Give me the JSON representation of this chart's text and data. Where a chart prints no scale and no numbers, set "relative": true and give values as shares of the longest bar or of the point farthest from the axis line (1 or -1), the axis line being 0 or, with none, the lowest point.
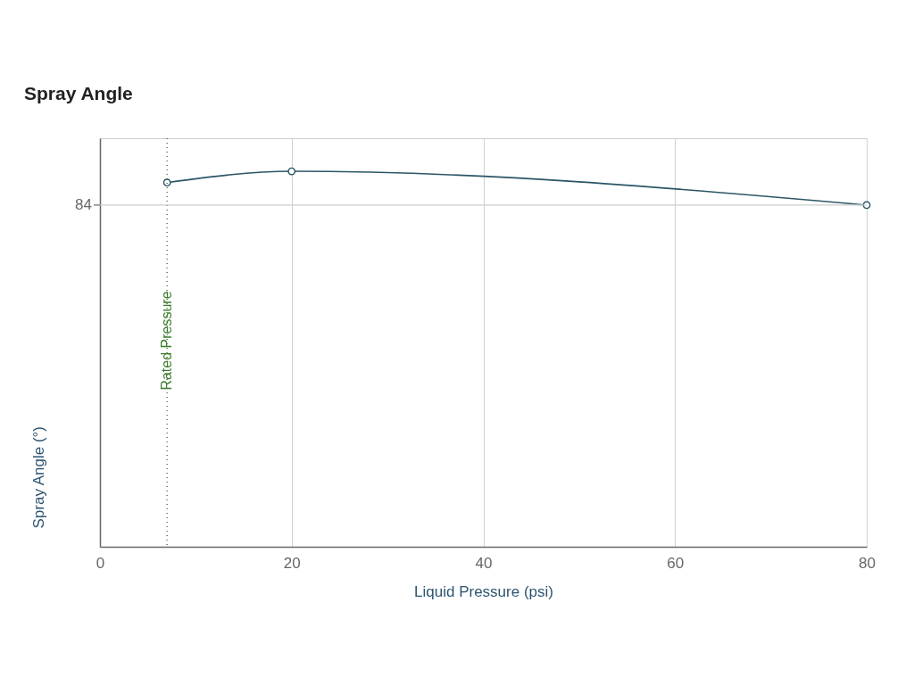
{
  "chart_data": {
    "type": "line",
    "title": "Spray Angle",
    "xlabel": "Liquid Pressure (psi)",
    "ylabel": "Spray Angle (°)",
    "x": [
      7,
      20,
      80
    ],
    "series": [
      {
        "color": "#2b5566",
        "values": [
          0.97,
          1,
          0.91
        ]
      }
    ],
    "relative": true,
    "xlim": [
      0,
      80
    ],
    "xticks": [
      0,
      20,
      40,
      60,
      80
    ],
    "grid": "x",
    "marker": "circle",
    "ref_lines": [
      {
        "axis": "x",
        "value": 7,
        "label": "Rated Pressure",
        "color": "#3c7d2f",
        "line_style": "dotted"
      },
      {
        "axis": "y",
        "value": 0.91,
        "color": "#cccccc"
      }
    ],
    "annotations": [
      "84"
    ]
  }
}
